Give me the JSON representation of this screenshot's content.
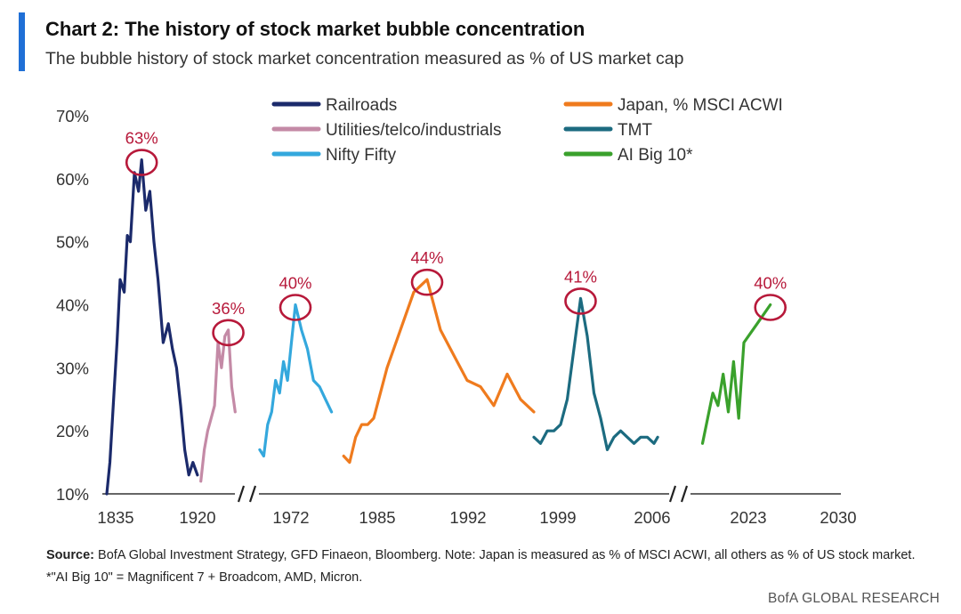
{
  "title": "Chart 2: The history of stock market bubble concentration",
  "subtitle": "The bubble history of stock market concentration measured as % of US market cap",
  "footnote": {
    "source_label": "Source:",
    "text": "BofA Global Investment Strategy, GFD Finaeon, Bloomberg. Note: Japan is measured as % of MSCI ACWI, all others as % of US stock market. *\"AI Big 10\" = Magnificent 7 + Broadcom, AMD, Micron."
  },
  "brand": "BofA GLOBAL RESEARCH",
  "chart_data": {
    "type": "line",
    "title": "",
    "xlabel": "",
    "ylabel": "",
    "ylim": [
      10,
      70
    ],
    "y_ticks": [
      "10%",
      "20%",
      "30%",
      "40%",
      "50%",
      "60%",
      "70%"
    ],
    "x_tick_labels": [
      "1835",
      "1920",
      "1972",
      "1985",
      "1992",
      "1999",
      "2006",
      "2023",
      "2030"
    ],
    "x_axis_breaks": 2,
    "grid": false,
    "legend_position": "top",
    "series": [
      {
        "name": "Railroads",
        "color": "#1b2a6b",
        "x": [
          1835,
          1838,
          1842,
          1845,
          1848,
          1852,
          1855,
          1858,
          1862,
          1866,
          1869,
          1873,
          1877,
          1881,
          1885,
          1890,
          1895,
          1899,
          1903,
          1907,
          1911,
          1915,
          1919,
          1921
        ],
        "values": [
          10,
          15,
          26,
          34,
          44,
          42,
          51,
          50,
          61,
          58,
          63,
          55,
          58,
          50,
          44,
          34,
          37,
          33,
          30,
          24,
          17,
          13,
          15,
          13
        ]
      },
      {
        "name": "Utilities/telco/industrials",
        "color": "#c48aa6",
        "x": [
          1922,
          1923,
          1924,
          1925,
          1926,
          1927,
          1928,
          1929,
          1930,
          1931,
          1932
        ],
        "values": [
          12,
          17,
          20,
          22,
          24,
          34,
          30,
          35,
          36,
          27,
          23
        ]
      },
      {
        "name": "Nifty Fifty",
        "color": "#34a8dd",
        "x": [
          1963,
          1964,
          1965,
          1966,
          1967,
          1968,
          1969,
          1970,
          1971,
          1972,
          1973,
          1974,
          1975,
          1976,
          1977,
          1978
        ],
        "values": [
          17,
          16,
          21,
          23,
          28,
          26,
          31,
          28,
          34,
          40,
          36,
          33,
          28,
          27,
          25,
          23
        ]
      },
      {
        "name": "Japan, % MSCI ACWI",
        "color": "#ef7b1e",
        "x": [
          1980,
          1981,
          1982,
          1983,
          1984,
          1985,
          1986,
          1987,
          1988,
          1989,
          1990,
          1991,
          1992,
          1993,
          1994,
          1995,
          1996,
          1997
        ],
        "values": [
          16,
          15,
          19,
          21,
          21,
          22,
          30,
          36,
          42,
          44,
          36,
          32,
          28,
          27,
          24,
          29,
          25,
          23
        ]
      },
      {
        "name": "TMT",
        "color": "#1c6b80",
        "x": [
          1997,
          1997.5,
          1998,
          1998.5,
          1999,
          1999.5,
          2000,
          2000.5,
          2001,
          2001.5,
          2002,
          2002.5,
          2003,
          2003.5,
          2004,
          2004.5,
          2005,
          2005.5,
          2006,
          2006.5
        ],
        "values": [
          19,
          18,
          20,
          20,
          21,
          25,
          33,
          41,
          35,
          26,
          22,
          17,
          19,
          20,
          19,
          18,
          19,
          19,
          18,
          19
        ]
      },
      {
        "name": "AI Big 10*",
        "color": "#3aa12c",
        "x": [
          2015,
          2016,
          2017,
          2018,
          2019,
          2020,
          2021,
          2022,
          2023,
          2024,
          2025
        ],
        "values": [
          18,
          22,
          26,
          24,
          29,
          23,
          31,
          22,
          34,
          37,
          40
        ]
      }
    ],
    "annotations": [
      {
        "label": "63%",
        "series": "Railroads"
      },
      {
        "label": "36%",
        "series": "Utilities/telco/industrials"
      },
      {
        "label": "40%",
        "series": "Nifty Fifty"
      },
      {
        "label": "44%",
        "series": "Japan, % MSCI ACWI"
      },
      {
        "label": "41%",
        "series": "TMT"
      },
      {
        "label": "40%",
        "series": "AI Big 10*"
      }
    ],
    "annotation_color": "#b7193a",
    "axis_color": "#333333"
  }
}
